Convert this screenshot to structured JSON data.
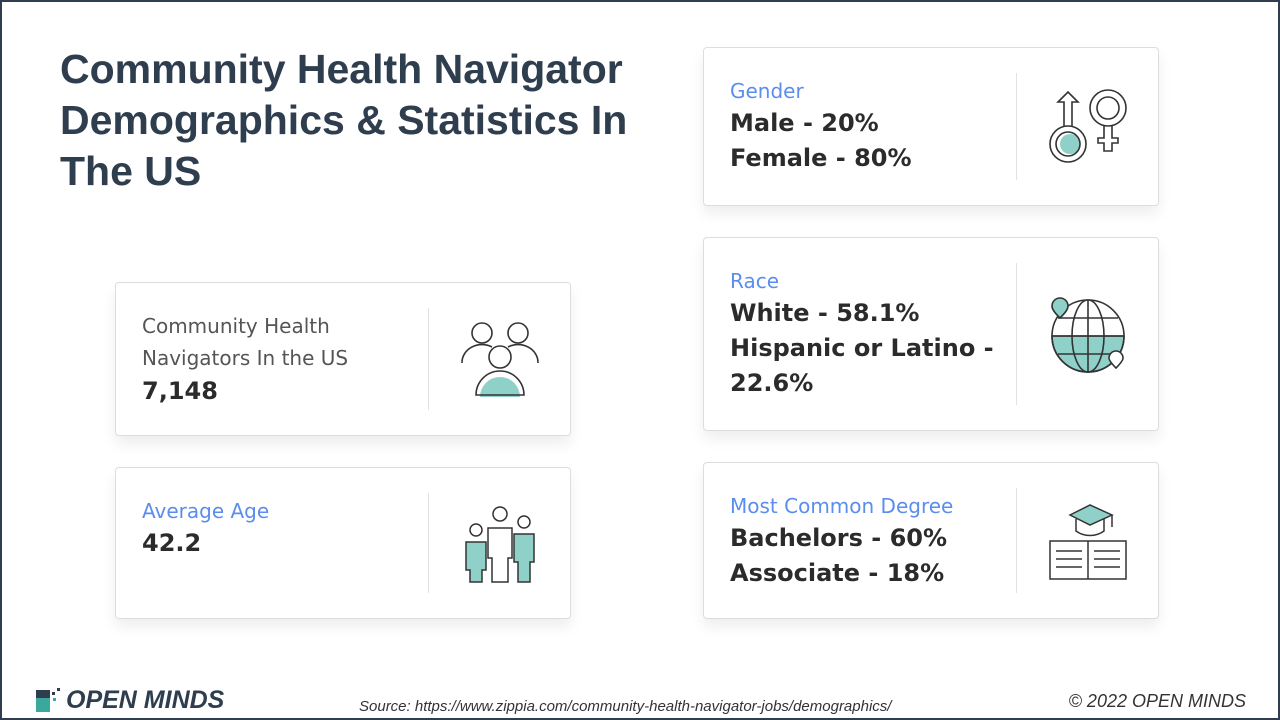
{
  "title": "Community Health Navigator Demographics & Statistics In The US",
  "cards": {
    "count": {
      "label": "Community Health Navigators In the US",
      "value": "7,148",
      "icon": "people-group-icon"
    },
    "age": {
      "label": "Average Age",
      "value": "42.2",
      "icon": "family-icon"
    },
    "gender": {
      "label": "Gender",
      "lines": [
        "Male - 20%",
        "Female - 80%"
      ],
      "icon": "gender-symbols-icon"
    },
    "race": {
      "label": "Race",
      "lines": [
        "White - 58.1%",
        "Hispanic or Latino - 22.6%"
      ],
      "icon": "globe-location-icon"
    },
    "degree": {
      "label": "Most Common Degree",
      "lines": [
        "Bachelors - 60%",
        "Associate - 18%"
      ],
      "icon": "graduation-book-icon"
    }
  },
  "footer": {
    "logo": "OPEN MINDS",
    "source": "Source: https://www.zippia.com/community-health-navigator-jobs/demographics/",
    "copyright": "© 2022 OPEN MINDS"
  },
  "colors": {
    "accent": "#5b8def",
    "teal": "#8fd0c8",
    "title": "#2f3e4e"
  }
}
